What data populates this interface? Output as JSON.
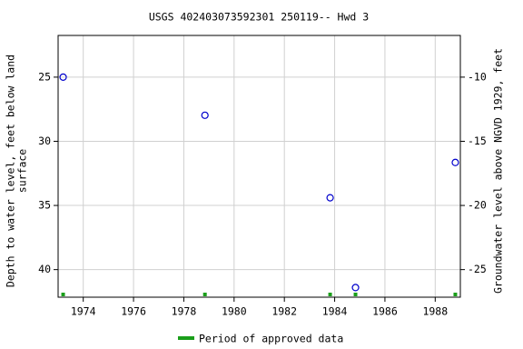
{
  "chart_data": {
    "type": "scatter",
    "title": "USGS 402403073592301 250119-- Hwd 3",
    "ylabel": [
      "Depth to water level, feet below land",
      "surface"
    ],
    "y2label": "Groundwater level above NGVD 1929, feet",
    "x": [
      1973.2,
      1978.84,
      1983.82,
      1984.83,
      1988.8
    ],
    "series": [
      {
        "name": "Depth to water level",
        "color": "#0000cc",
        "values": [
          25.0,
          27.97,
          34.4,
          41.4,
          31.65
        ]
      }
    ],
    "approved": {
      "name": "Period of approved data",
      "color": "#1a9e1a",
      "x": [
        1973.2,
        1978.84,
        1983.82,
        1984.83,
        1988.8
      ]
    },
    "xlim": [
      1973.0,
      1989.0
    ],
    "xticks": [
      1974,
      1976,
      1978,
      1980,
      1982,
      1984,
      1986,
      1988
    ],
    "ylim": [
      21.75,
      42.15
    ],
    "yticks": [
      25,
      30,
      35,
      40
    ],
    "y_inverted": true,
    "y2lim": [
      -6.75,
      -27.15
    ],
    "y2ticks": [
      -10,
      -15,
      -20,
      -25
    ],
    "grid": true
  }
}
